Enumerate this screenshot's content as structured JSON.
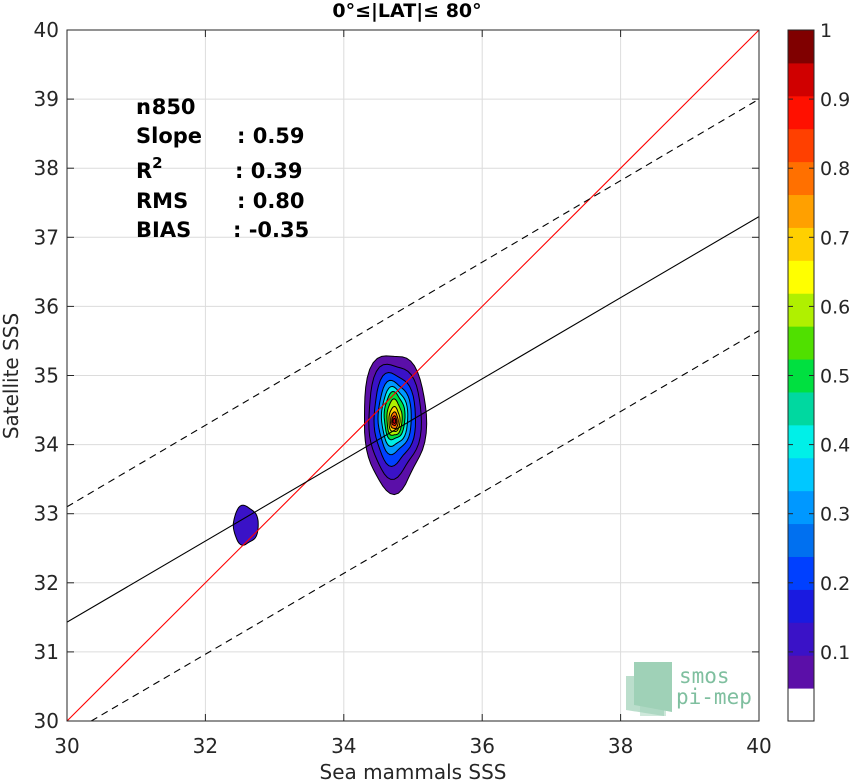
{
  "chart_data": {
    "type": "heatmap",
    "title": "0°≤|LAT|≤ 80°",
    "xlabel": "Sea mammals SSS",
    "ylabel": "Satellite SSS",
    "xlim": [
      30,
      40
    ],
    "ylim": [
      30,
      40
    ],
    "x_ticks": [
      30,
      32,
      34,
      36,
      38,
      40
    ],
    "y_ticks": [
      30,
      31,
      32,
      33,
      34,
      35,
      36,
      37,
      38,
      39,
      40
    ],
    "grid": true,
    "stats": [
      {
        "key": "n",
        "value": ": 850"
      },
      {
        "key": "Slope",
        "value": ": 0.59"
      },
      {
        "key": "R",
        "sup": "2",
        "value": ": 0.39"
      },
      {
        "key": "RMS",
        "value": ": 0.80"
      },
      {
        "key": "BIAS",
        "value": ": -0.35"
      }
    ],
    "lines": [
      {
        "name": "one-to-one",
        "color": "#ff0000",
        "style": "solid",
        "slope": 1.0,
        "intercept": 0.0
      },
      {
        "name": "regression",
        "color": "#000000",
        "style": "solid",
        "points": [
          [
            30,
            31.43
          ],
          [
            40,
            37.3
          ]
        ]
      },
      {
        "name": "upper-bound",
        "color": "#000000",
        "style": "dashed",
        "points": [
          [
            30,
            33.1
          ],
          [
            40,
            39.0
          ]
        ]
      },
      {
        "name": "lower-bound",
        "color": "#000000",
        "style": "dashed",
        "points": [
          [
            30.35,
            30.0
          ],
          [
            40,
            35.65
          ]
        ]
      }
    ],
    "density_clusters": [
      {
        "center": [
          34.73,
          34.35
        ],
        "levels": [
          {
            "level": 0.05,
            "rx": 0.45,
            "ry": 1.0,
            "dy": -0.05
          },
          {
            "level": 0.1,
            "rx": 0.38,
            "ry": 0.82,
            "dy": -0.02
          },
          {
            "level": 0.2,
            "rx": 0.3,
            "ry": 0.66,
            "dy": 0.0
          },
          {
            "level": 0.3,
            "rx": 0.24,
            "ry": 0.52,
            "dy": 0.02
          },
          {
            "level": 0.4,
            "rx": 0.19,
            "ry": 0.42,
            "dy": 0.03
          },
          {
            "level": 0.5,
            "rx": 0.15,
            "ry": 0.34,
            "dy": 0.04
          },
          {
            "level": 0.6,
            "rx": 0.11,
            "ry": 0.26,
            "dy": 0.02
          },
          {
            "level": 0.7,
            "rx": 0.08,
            "ry": 0.18,
            "dy": 0.0
          },
          {
            "level": 0.8,
            "rx": 0.055,
            "ry": 0.12,
            "dy": -0.01
          },
          {
            "level": 0.9,
            "rx": 0.035,
            "ry": 0.07,
            "dy": -0.01
          },
          {
            "level": 0.95,
            "rx": 0.02,
            "ry": 0.035,
            "dy": -0.01
          }
        ]
      },
      {
        "center": [
          32.58,
          32.82
        ],
        "levels": [
          {
            "level": 0.1,
            "rx": 0.18,
            "ry": 0.28,
            "dy": 0.0
          }
        ]
      }
    ],
    "colorbar": {
      "range": [
        0,
        1
      ],
      "ticks": [
        0.1,
        0.2,
        0.3,
        0.4,
        0.5,
        0.6,
        0.7,
        0.8,
        0.9,
        1
      ],
      "tick_labels": [
        "0.1",
        "0.2",
        "0.3",
        "0.4",
        "0.5",
        "0.6",
        "0.7",
        "0.8",
        "0.9",
        "1"
      ],
      "colors": [
        "#ffffff",
        "#5b0fa8",
        "#3a12c7",
        "#1a1ae0",
        "#0040ff",
        "#0070f0",
        "#0098ff",
        "#00c8ff",
        "#00f0e8",
        "#00d8a0",
        "#00e040",
        "#50e000",
        "#b0f000",
        "#ffff00",
        "#ffd000",
        "#ffa000",
        "#ff7000",
        "#ff4000",
        "#ff1000",
        "#d00000",
        "#800000"
      ]
    }
  },
  "logo": {
    "line1": "smos",
    "line2": "pi-mep",
    "color": "#7fbf9f"
  }
}
